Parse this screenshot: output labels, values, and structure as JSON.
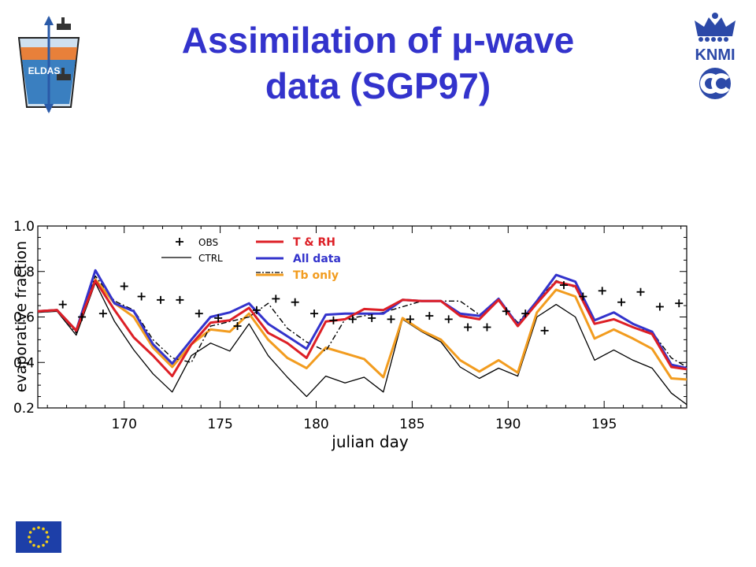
{
  "header": {
    "title_line1": "Assimilation of μ-wave",
    "title_line2": "data (SGP97)",
    "title_color": "#3333CC",
    "eldas_logo_text": "ELDAS",
    "knmi_logo_text": "KNMI"
  },
  "chart_data": {
    "type": "line",
    "title": "",
    "xlabel": "julian day",
    "ylabel": "evaporative fraction",
    "xlim": [
      165.5,
      199.3
    ],
    "ylim": [
      0.2,
      1.0
    ],
    "x_ticks": [
      170,
      175,
      180,
      185,
      190,
      195
    ],
    "y_ticks": [
      "0.2",
      "0.4",
      "0.6",
      "0.8",
      "1.0"
    ],
    "grid": false,
    "legend_left": [
      {
        "label": "OBS",
        "marker": "+",
        "color": "#000000"
      },
      {
        "label": "CTRL",
        "style": "solid",
        "color": "#000000"
      }
    ],
    "legend_right": [
      {
        "label": "T & RH",
        "color": "#DD1F26"
      },
      {
        "label": "All data",
        "color": "#3333CC"
      },
      {
        "label": "Tb only",
        "color": "#F29C1F"
      }
    ],
    "obs": {
      "name": "OBS",
      "x": [
        166.8,
        167.8,
        168.9,
        170.0,
        170.9,
        171.9,
        172.9,
        173.9,
        174.9,
        175.9,
        176.9,
        177.9,
        178.9,
        179.9,
        180.9,
        181.9,
        182.9,
        183.9,
        184.9,
        185.9,
        186.9,
        187.9,
        188.9,
        189.9,
        190.9,
        191.9,
        192.9,
        193.9,
        194.9,
        195.9,
        196.9,
        197.9,
        198.9
      ],
      "y": [
        0.655,
        0.6,
        0.615,
        0.735,
        0.69,
        0.675,
        0.675,
        0.615,
        0.595,
        0.56,
        0.63,
        0.68,
        0.665,
        0.615,
        0.585,
        0.59,
        0.595,
        0.59,
        0.59,
        0.605,
        0.59,
        0.555,
        0.555,
        0.625,
        0.615,
        0.54,
        0.74,
        0.69,
        0.715,
        0.665,
        0.71,
        0.645,
        0.66
      ]
    },
    "series": [
      {
        "name": "CTRL",
        "color": "#000000",
        "x": [
          165.5,
          166.5,
          167.5,
          168.5,
          169.5,
          170.5,
          171.5,
          172.5,
          173.5,
          174.5,
          175.5,
          176.5,
          177.5,
          178.5,
          179.5,
          180.5,
          181.5,
          182.5,
          183.5,
          184.5,
          185.5,
          186.5,
          187.5,
          188.5,
          189.5,
          190.5,
          191.5,
          192.5,
          193.5,
          194.5,
          195.5,
          196.5,
          197.5,
          198.5,
          199.3
        ],
        "y": [
          0.62,
          0.625,
          0.52,
          0.75,
          0.58,
          0.455,
          0.35,
          0.27,
          0.43,
          0.485,
          0.45,
          0.57,
          0.43,
          0.335,
          0.25,
          0.34,
          0.31,
          0.335,
          0.27,
          0.59,
          0.535,
          0.49,
          0.38,
          0.33,
          0.375,
          0.34,
          0.6,
          0.655,
          0.6,
          0.41,
          0.455,
          0.41,
          0.375,
          0.265,
          0.215
        ]
      },
      {
        "name": "CTRL (dash-dot)",
        "color": "#000000",
        "x": [
          165.5,
          166.5,
          167.5,
          168.5,
          169.5,
          170.5,
          171.5,
          172.5,
          173.5,
          174.5,
          175.5,
          176.5,
          177.5,
          178.5,
          179.5,
          180.5,
          181.5,
          182.5,
          183.5,
          184.5,
          185.5,
          186.5,
          187.5,
          188.5,
          189.5,
          190.5,
          191.5,
          192.5,
          193.5,
          194.5,
          195.5,
          196.5,
          197.5,
          198.5,
          199.3
        ],
        "y": [
          0.625,
          0.63,
          0.53,
          0.78,
          0.67,
          0.63,
          0.5,
          0.42,
          0.4,
          0.56,
          0.58,
          0.6,
          0.66,
          0.55,
          0.49,
          0.45,
          0.59,
          0.605,
          0.62,
          0.645,
          0.67,
          0.67,
          0.67,
          0.61,
          0.67,
          0.575,
          0.67,
          0.76,
          0.73,
          0.57,
          0.59,
          0.555,
          0.535,
          0.42,
          0.38
        ]
      },
      {
        "name": "T & RH",
        "color": "#DD1F26",
        "x": [
          165.5,
          166.5,
          167.5,
          168.5,
          169.5,
          170.5,
          171.5,
          172.5,
          173.5,
          174.5,
          175.5,
          176.5,
          177.5,
          178.5,
          179.5,
          180.5,
          181.5,
          182.5,
          183.5,
          184.5,
          185.5,
          186.5,
          187.5,
          188.5,
          189.5,
          190.5,
          191.5,
          192.5,
          193.5,
          194.5,
          195.5,
          196.5,
          197.5,
          198.5,
          199.3
        ],
        "y": [
          0.625,
          0.63,
          0.54,
          0.76,
          0.63,
          0.51,
          0.43,
          0.34,
          0.48,
          0.575,
          0.585,
          0.64,
          0.53,
          0.485,
          0.42,
          0.58,
          0.59,
          0.635,
          0.63,
          0.675,
          0.67,
          0.67,
          0.605,
          0.59,
          0.675,
          0.56,
          0.66,
          0.755,
          0.735,
          0.57,
          0.59,
          0.555,
          0.525,
          0.38,
          0.37
        ]
      },
      {
        "name": "All data",
        "color": "#3333CC",
        "x": [
          165.5,
          166.5,
          167.5,
          168.5,
          169.5,
          170.5,
          171.5,
          172.5,
          173.5,
          174.5,
          175.5,
          176.5,
          177.5,
          178.5,
          179.5,
          180.5,
          181.5,
          182.5,
          183.5,
          184.5,
          185.5,
          186.5,
          187.5,
          188.5,
          189.5,
          190.5,
          191.5,
          192.5,
          193.5,
          194.5,
          195.5,
          196.5,
          197.5,
          198.5,
          199.3
        ],
        "y": [
          0.625,
          0.63,
          0.54,
          0.805,
          0.66,
          0.625,
          0.48,
          0.395,
          0.5,
          0.6,
          0.62,
          0.66,
          0.57,
          0.515,
          0.46,
          0.61,
          0.615,
          0.615,
          0.615,
          0.675,
          0.67,
          0.67,
          0.615,
          0.605,
          0.68,
          0.565,
          0.67,
          0.785,
          0.755,
          0.585,
          0.62,
          0.57,
          0.535,
          0.39,
          0.375
        ]
      },
      {
        "name": "Tb only",
        "color": "#F29C1F",
        "x": [
          165.5,
          166.5,
          167.5,
          168.5,
          169.5,
          170.5,
          171.5,
          172.5,
          173.5,
          174.5,
          175.5,
          176.5,
          177.5,
          178.5,
          179.5,
          180.5,
          181.5,
          182.5,
          183.5,
          184.5,
          185.5,
          186.5,
          187.5,
          188.5,
          189.5,
          190.5,
          191.5,
          192.5,
          193.5,
          194.5,
          195.5,
          196.5,
          197.5,
          198.5,
          199.3
        ],
        "y": [
          0.625,
          0.63,
          0.54,
          0.765,
          0.66,
          0.6,
          0.465,
          0.38,
          0.48,
          0.545,
          0.535,
          0.615,
          0.5,
          0.42,
          0.375,
          0.465,
          0.44,
          0.415,
          0.335,
          0.595,
          0.54,
          0.5,
          0.41,
          0.36,
          0.41,
          0.355,
          0.62,
          0.72,
          0.69,
          0.505,
          0.545,
          0.505,
          0.46,
          0.33,
          0.325
        ]
      }
    ]
  }
}
